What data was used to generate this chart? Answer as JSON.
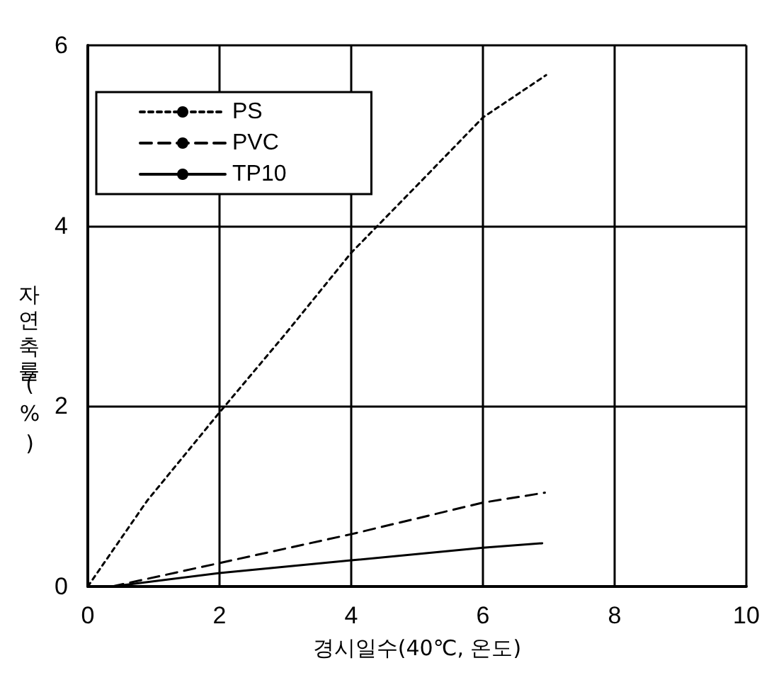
{
  "chart_data": {
    "type": "line",
    "xlabel": "경시일수(40℃, 온도)",
    "ylabel": "자연축률(%)",
    "xlim": [
      0,
      10
    ],
    "xticks": [
      0,
      2,
      4,
      6,
      8,
      10
    ],
    "ylim": [
      0,
      6
    ],
    "yticks": [
      0,
      2,
      4,
      6
    ],
    "grid": true,
    "legend": "top left",
    "marker": "none",
    "series": [
      {
        "name": "PS",
        "color": "#000000",
        "line_style": "dotted",
        "x": [
          0,
          0.9,
          2,
          3,
          4,
          5.07,
          6,
          6.96
        ],
        "values": [
          0,
          0.95,
          1.93,
          2.8,
          3.7,
          4.5,
          5.2,
          5.67
        ]
      },
      {
        "name": "PVC",
        "color": "#000000",
        "line_style": "dashed",
        "x": [
          0.37,
          2,
          4,
          6,
          6.94
        ],
        "values": [
          0,
          0.26,
          0.58,
          0.93,
          1.04
        ]
      },
      {
        "name": "TP10",
        "color": "#000000",
        "line_style": "solid",
        "x": [
          0.37,
          2,
          4,
          6,
          6.9
        ],
        "values": [
          0,
          0.15,
          0.29,
          0.43,
          0.48
        ]
      }
    ]
  }
}
